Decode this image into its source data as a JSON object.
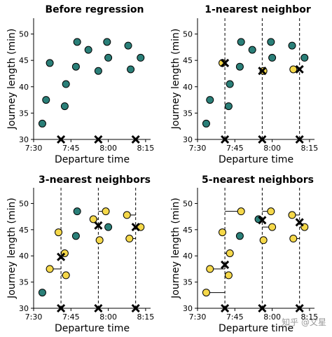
{
  "x_ticks": [
    "7:30",
    "7:45",
    "8:00",
    "8:15"
  ],
  "y_ticks": [
    "30",
    "35",
    "40",
    "45",
    "50"
  ],
  "watermark": "知乎 @文星",
  "colors": {
    "training_point": "#2a7f78",
    "neighbor_point": "#f5d84a",
    "prediction_marker": "#000000",
    "grid_line": "#000000",
    "neighbor_link": "#000000"
  },
  "chart_data": [
    {
      "type": "scatter",
      "title": "Before regression",
      "xlabel": "Departure time",
      "ylabel": "Journey length (min)",
      "x_unit": "minutes after 7:30",
      "xlim": [
        0,
        47
      ],
      "ylim": [
        30,
        53
      ],
      "training_points": [
        [
          3.5,
          33
        ],
        [
          5,
          37.5
        ],
        [
          6.5,
          44.5
        ],
        [
          12.5,
          36.3
        ],
        [
          13,
          40.5
        ],
        [
          17,
          43.8
        ],
        [
          17.5,
          48.5
        ],
        [
          22,
          47
        ],
        [
          26,
          43
        ],
        [
          29.5,
          48.5
        ],
        [
          30,
          45.5
        ],
        [
          38,
          47.8
        ],
        [
          39,
          43.3
        ],
        [
          43,
          45.5
        ]
      ],
      "query_x": [
        11,
        26,
        41
      ],
      "k": 0,
      "predictions": [],
      "neighbor_points": []
    },
    {
      "type": "scatter",
      "title": "1-nearest neighbor",
      "xlabel": "Departure time",
      "ylabel": "Journey length (min)",
      "x_unit": "minutes after 7:30",
      "xlim": [
        0,
        47
      ],
      "ylim": [
        30,
        53
      ],
      "training_points": [
        [
          3.5,
          33
        ],
        [
          5,
          37.5
        ],
        [
          12.5,
          36.3
        ],
        [
          13,
          40.5
        ],
        [
          17,
          43.8
        ],
        [
          17.5,
          48.5
        ],
        [
          22,
          47
        ],
        [
          29.5,
          48.5
        ],
        [
          30,
          45.5
        ],
        [
          38,
          47.8
        ],
        [
          43,
          45.5
        ]
      ],
      "neighbor_points": [
        [
          10,
          44.5
        ],
        [
          26.5,
          43
        ],
        [
          38.5,
          43.3
        ]
      ],
      "query_x": [
        11,
        26,
        41
      ],
      "k": 1,
      "predictions": [
        44.5,
        43,
        43.3
      ]
    },
    {
      "type": "scatter",
      "title": "3-nearest neighbors",
      "xlabel": "Departure time",
      "ylabel": "Journey length (min)",
      "x_unit": "minutes after 7:30",
      "xlim": [
        0,
        47
      ],
      "ylim": [
        30,
        53
      ],
      "training_points": [
        [
          3.5,
          33
        ],
        [
          17,
          43.8
        ],
        [
          17.5,
          48.5
        ],
        [
          30,
          45.5
        ]
      ],
      "neighbor_points": [
        [
          6.5,
          37.5
        ],
        [
          10,
          44.5
        ],
        [
          13,
          36.3
        ],
        [
          12.5,
          40.5
        ],
        [
          24,
          47
        ],
        [
          26.5,
          43
        ],
        [
          29,
          48.5
        ],
        [
          37.5,
          47.8
        ],
        [
          38.5,
          43.3
        ],
        [
          43,
          45.5
        ]
      ],
      "query_x": [
        11,
        26,
        41
      ],
      "k": 3,
      "predictions": [
        39.8,
        45.8,
        45.5
      ]
    },
    {
      "type": "scatter",
      "title": "5-nearest neighbors",
      "xlabel": "Departure time",
      "ylabel": "Journey length (min)",
      "x_unit": "minutes after 7:30",
      "xlim": [
        0,
        47
      ],
      "ylim": [
        30,
        53
      ],
      "training_points": [
        [
          17,
          43.8
        ],
        [
          24.5,
          47
        ]
      ],
      "neighbor_points": [
        [
          3.5,
          33
        ],
        [
          5,
          37.5
        ],
        [
          10,
          44.5
        ],
        [
          12.5,
          36.3
        ],
        [
          13,
          40.5
        ],
        [
          17.5,
          48.5
        ],
        [
          26.5,
          43
        ],
        [
          29.5,
          48.5
        ],
        [
          30,
          45.5
        ],
        [
          38,
          47.8
        ],
        [
          38.5,
          43.3
        ],
        [
          43,
          45.5
        ]
      ],
      "query_x": [
        11,
        26,
        41
      ],
      "k": 5,
      "predictions": [
        38.3,
        46.8,
        46.4
      ]
    }
  ]
}
